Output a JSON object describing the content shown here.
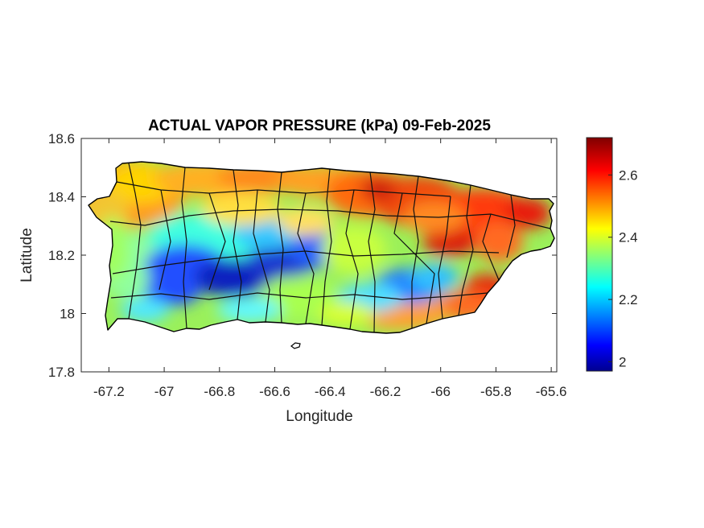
{
  "map": {
    "title": "ACTUAL VAPOR PRESSURE (kPa) 09-Feb-2025",
    "xlabel": "Longitude",
    "ylabel": "Latitude",
    "xlim": [
      -67.3,
      -65.58
    ],
    "ylim": [
      17.8,
      18.6
    ],
    "xticks": [
      -67.2,
      -67,
      -66.8,
      -66.6,
      -66.4,
      -66.2,
      -66,
      -65.8,
      -65.6
    ],
    "xtick_labels": [
      "-67.2",
      "-67",
      "-66.8",
      "-66.6",
      "-66.4",
      "-66.2",
      "-66",
      "-65.8",
      "-65.6"
    ],
    "yticks": [
      17.8,
      18,
      18.2,
      18.4,
      18.6
    ],
    "ytick_labels": [
      "17.8",
      "18",
      "18.2",
      "18.4",
      "18.6"
    ],
    "region": "Puerto Rico municipalities",
    "colormap": "jet",
    "colorbar": {
      "min": 1.97,
      "max": 2.72,
      "ticks": [
        2,
        2.2,
        2.4,
        2.6
      ],
      "tick_labels": [
        "2",
        "2.2",
        "2.4",
        "2.6"
      ]
    }
  }
}
